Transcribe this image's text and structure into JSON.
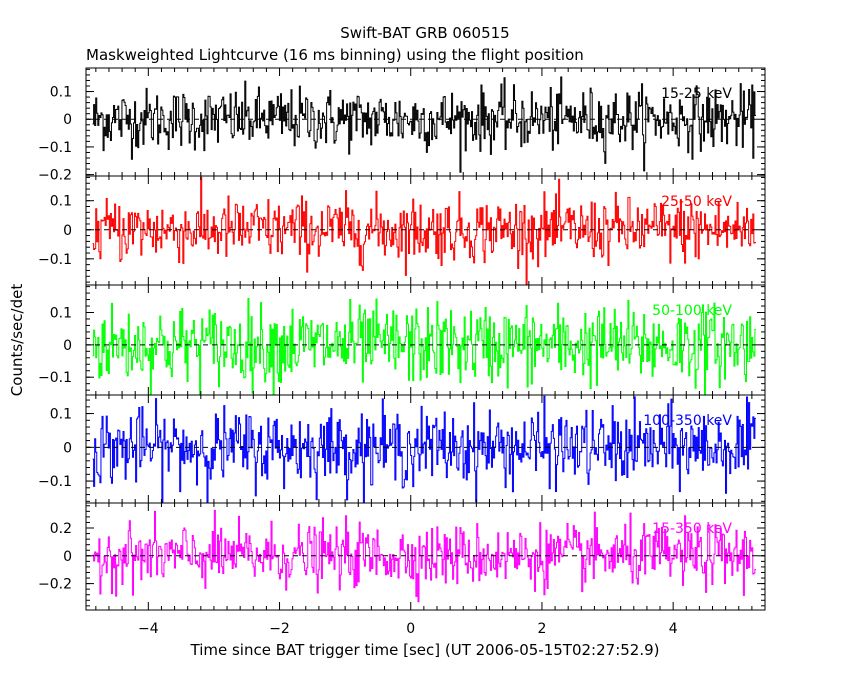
{
  "chart_data": {
    "type": "line",
    "title": "Swift-BAT GRB 060515",
    "subtitle": "Maskweighted Lightcurve (16 ms binning) using the flight position",
    "xlabel": "Time since BAT trigger time [sec] (UT 2006-05-15T02:27:52.9)",
    "ylabel": "Counts/sec/det",
    "xlim": [
      -4.95,
      5.4
    ],
    "x_ticks": [
      -4,
      -2,
      0,
      2,
      4
    ],
    "x_tick_labels": [
      "−4",
      "−2",
      "0",
      "2",
      "4"
    ],
    "time_range": [
      -4.85,
      5.25
    ],
    "bin_width": 0.016,
    "grid": false,
    "panels": [
      {
        "name": "15-25 keV",
        "color": "#000000",
        "ylim": [
          -0.205,
          0.185
        ],
        "yticks": [
          0.1,
          0,
          -0.1,
          -0.2
        ],
        "ytick_labels": [
          "0.1",
          "0",
          "−0.1",
          "−0.2"
        ],
        "noise_sigma": 0.055
      },
      {
        "name": "25-50 keV",
        "color": "#ff0000",
        "ylim": [
          -0.19,
          0.185
        ],
        "yticks": [
          0.1,
          0,
          -0.1
        ],
        "ytick_labels": [
          "0.1",
          "0",
          "−0.1"
        ],
        "noise_sigma": 0.055
      },
      {
        "name": "50-100 keV",
        "color": "#00ff00",
        "ylim": [
          -0.155,
          0.185
        ],
        "yticks": [
          0.1,
          0,
          -0.1
        ],
        "ytick_labels": [
          "0.1",
          "0",
          "−0.1"
        ],
        "noise_sigma": 0.06
      },
      {
        "name": "100-350 keV",
        "color": "#0000ff",
        "ylim": [
          -0.165,
          0.155
        ],
        "yticks": [
          0.1,
          0,
          -0.1
        ],
        "ytick_labels": [
          "0.1",
          "0",
          "−0.1"
        ],
        "noise_sigma": 0.055
      },
      {
        "name": "15-350 keV",
        "color": "#ff00ff",
        "ylim": [
          -0.39,
          0.38
        ],
        "yticks": [
          0.2,
          0,
          -0.2
        ],
        "ytick_labels": [
          "0.2",
          "0",
          "−0.2"
        ],
        "noise_sigma": 0.11
      }
    ]
  }
}
